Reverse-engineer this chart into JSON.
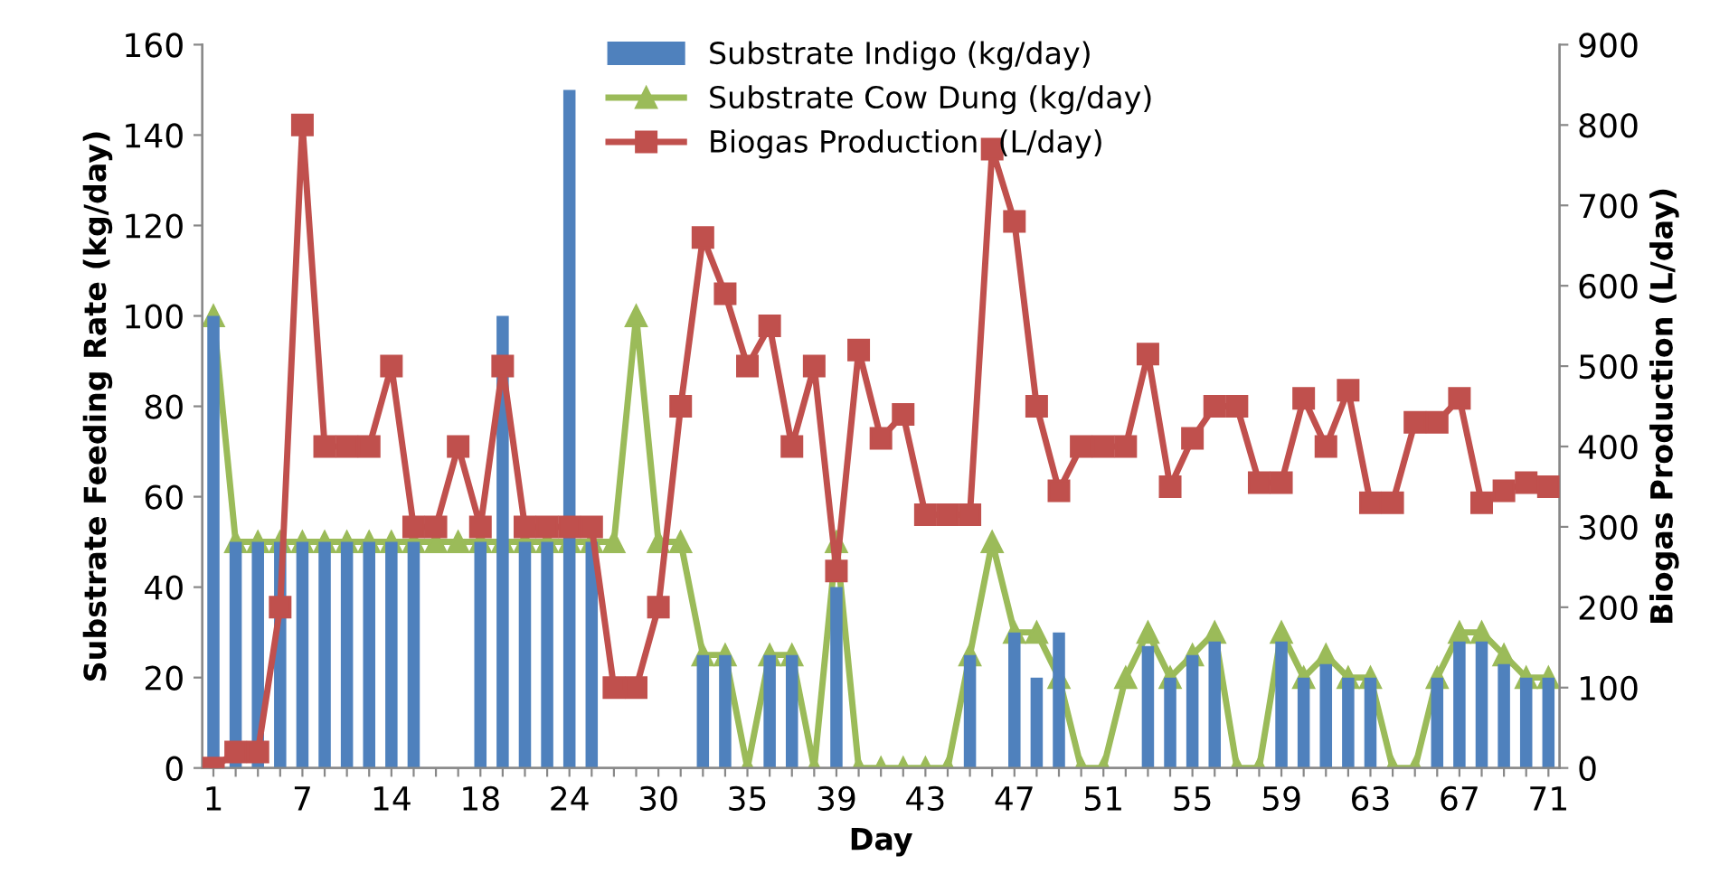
{
  "chart_data": {
    "type": "bar",
    "xlabel": "Day",
    "ylabel": "Substrate Feeding Rate (kg/day)",
    "y2label": "Biogas Production (L/day)",
    "categories": [
      "1",
      null,
      null,
      null,
      "7",
      null,
      null,
      null,
      "14",
      null,
      null,
      null,
      "18",
      null,
      null,
      null,
      "24",
      null,
      null,
      null,
      "30",
      null,
      null,
      null,
      "35",
      null,
      null,
      null,
      "39",
      null,
      null,
      null,
      "43",
      null,
      null,
      null,
      "47",
      null,
      null,
      null,
      "51",
      null,
      null,
      null,
      "55",
      null,
      null,
      null,
      "59",
      null,
      null,
      null,
      "63",
      null,
      null,
      null,
      "67",
      null,
      null,
      null,
      "71"
    ],
    "series": [
      {
        "name": "Substrate Indigo (kg/day)",
        "color": "#4f81bd",
        "values": [
          100,
          50,
          50,
          50,
          50,
          50,
          50,
          50,
          50,
          50,
          null,
          null,
          50,
          100,
          50,
          50,
          150,
          50,
          null,
          null,
          null,
          null,
          25,
          25,
          null,
          25,
          25,
          null,
          40,
          null,
          null,
          null,
          null,
          null,
          25,
          null,
          30,
          20,
          30,
          null,
          null,
          null,
          27,
          20,
          25,
          28,
          null,
          null,
          28,
          20,
          23,
          20,
          20,
          null,
          null,
          20,
          28,
          28,
          23,
          20,
          20
        ]
      },
      {
        "name": "Substrate Cow Dung (kg/day)",
        "type": "line",
        "marker": "triangle",
        "color": "#9bbb59",
        "values": [
          100,
          50,
          50,
          50,
          50,
          50,
          50,
          50,
          50,
          50,
          50,
          50,
          50,
          50,
          50,
          50,
          50,
          50,
          50,
          100,
          50,
          50,
          25,
          25,
          0,
          25,
          25,
          0,
          50,
          0,
          0,
          0,
          0,
          0,
          25,
          50,
          30,
          30,
          20,
          0,
          0,
          20,
          30,
          20,
          25,
          30,
          0,
          0,
          30,
          20,
          25,
          20,
          20,
          0,
          0,
          20,
          30,
          30,
          25,
          20,
          20
        ]
      },
      {
        "name": "Biogas Production  (L/day)",
        "type": "line",
        "marker": "square",
        "axis": "y2",
        "color": "#c0504d",
        "values": [
          0,
          20,
          20,
          200,
          800,
          400,
          400,
          400,
          500,
          300,
          300,
          400,
          300,
          500,
          300,
          300,
          300,
          300,
          100,
          100,
          200,
          450,
          660,
          590,
          500,
          550,
          400,
          500,
          245,
          520,
          410,
          440,
          315,
          315,
          315,
          770,
          680,
          450,
          345,
          400,
          400,
          400,
          515,
          350,
          410,
          450,
          450,
          355,
          355,
          460,
          400,
          470,
          330,
          330,
          430,
          430,
          460,
          330,
          345,
          355,
          350
        ]
      }
    ],
    "ylim": [
      0,
      160
    ],
    "yticks": [
      0,
      20,
      40,
      60,
      80,
      100,
      120,
      140,
      160
    ],
    "y2lim": [
      0,
      900
    ],
    "y2ticks": [
      0,
      100,
      200,
      300,
      400,
      500,
      600,
      700,
      800,
      900
    ],
    "legend": "top",
    "grid": false
  }
}
